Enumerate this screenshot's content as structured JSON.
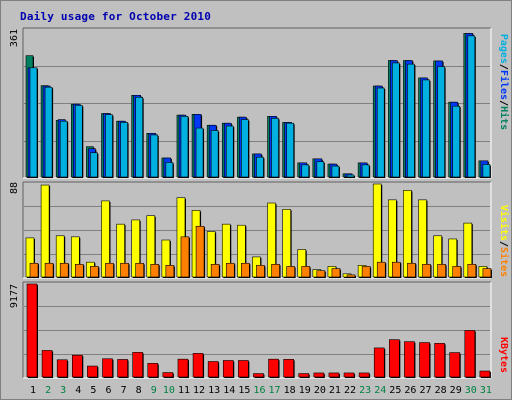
{
  "title": "Daily usage for October 2010",
  "colors": {
    "pages": "#00b0e0",
    "files": "#0038f8",
    "hits": "#008060",
    "visits": "#ffff00",
    "sites": "#ff8000",
    "kbytes": "#ff0000",
    "weekday_label": "#000000",
    "weekend_label": "#008040",
    "frame_bg": "#c0c0c0",
    "title": "#0000b0"
  },
  "chart_data": [
    {
      "type": "bar",
      "panel": "pages-files-hits",
      "ymax_label": "361",
      "ylim": [
        0,
        361
      ],
      "legend": [
        {
          "label": "Pages",
          "color_key": "pages"
        },
        {
          "label": "Files",
          "color_key": "files"
        },
        {
          "label": "Hits",
          "color_key": "hits"
        }
      ],
      "categories": [
        "1",
        "2",
        "3",
        "4",
        "5",
        "6",
        "7",
        "8",
        "9",
        "10",
        "11",
        "12",
        "13",
        "14",
        "15",
        "16",
        "17",
        "18",
        "19",
        "20",
        "21",
        "22",
        "23",
        "24",
        "25",
        "26",
        "27",
        "28",
        "29",
        "30",
        "31"
      ],
      "weekend_days": [
        "2",
        "3",
        "9",
        "10",
        "16",
        "17",
        "23",
        "24",
        "30",
        "31"
      ],
      "series": [
        {
          "name": "Hits",
          "color_key": "hits",
          "values": [
            300,
            226,
            140,
            180,
            75,
            157,
            138,
            202,
            108,
            47,
            153,
            155,
            128,
            133,
            148,
            57,
            150,
            135,
            35,
            45,
            32,
            8,
            35,
            225,
            288,
            288,
            245,
            287,
            185,
            355,
            40
          ]
        },
        {
          "name": "Files",
          "color_key": "files",
          "values": [
            270,
            225,
            142,
            180,
            70,
            157,
            138,
            202,
            108,
            47,
            153,
            155,
            128,
            133,
            148,
            57,
            150,
            135,
            35,
            45,
            32,
            8,
            35,
            225,
            288,
            288,
            245,
            287,
            185,
            355,
            40
          ]
        },
        {
          "name": "Pages",
          "color_key": "pages",
          "values": [
            270,
            222,
            138,
            177,
            60,
            154,
            135,
            197,
            104,
            36,
            150,
            121,
            115,
            126,
            142,
            49,
            145,
            133,
            30,
            38,
            27,
            5,
            30,
            220,
            282,
            279,
            240,
            273,
            175,
            349,
            31
          ]
        }
      ]
    },
    {
      "type": "bar",
      "panel": "visits-sites",
      "ymax_label": "88",
      "ylim": [
        0,
        88
      ],
      "legend": [
        {
          "label": "Visits",
          "color_key": "visits"
        },
        {
          "label": "Sites",
          "color_key": "sites"
        }
      ],
      "categories": [
        "1",
        "2",
        "3",
        "4",
        "5",
        "6",
        "7",
        "8",
        "9",
        "10",
        "11",
        "12",
        "13",
        "14",
        "15",
        "16",
        "17",
        "18",
        "19",
        "20",
        "21",
        "22",
        "23",
        "24",
        "25",
        "26",
        "27",
        "28",
        "29",
        "30",
        "31"
      ],
      "series": [
        {
          "name": "Visits",
          "color_key": "visits",
          "values": [
            37,
            87,
            39,
            38,
            14,
            72,
            50,
            54,
            58,
            35,
            75,
            63,
            43,
            50,
            49,
            19,
            70,
            64,
            26,
            7,
            10,
            3,
            11,
            88,
            73,
            82,
            73,
            39,
            36,
            51,
            10
          ]
        },
        {
          "name": "Sites",
          "color_key": "sites",
          "values": [
            13,
            13,
            13,
            12,
            10,
            13,
            13,
            13,
            12,
            11,
            38,
            48,
            12,
            13,
            13,
            11,
            12,
            10,
            10,
            6,
            8,
            2,
            10,
            14,
            14,
            13,
            12,
            12,
            10,
            12,
            8
          ]
        }
      ]
    },
    {
      "type": "bar",
      "panel": "kbytes",
      "ymax_label": "9177",
      "ylim": [
        0,
        9177
      ],
      "legend": [
        {
          "label": "KBytes",
          "color_key": "kbytes"
        }
      ],
      "categories": [
        "1",
        "2",
        "3",
        "4",
        "5",
        "6",
        "7",
        "8",
        "9",
        "10",
        "11",
        "12",
        "13",
        "14",
        "15",
        "16",
        "17",
        "18",
        "19",
        "20",
        "21",
        "22",
        "23",
        "24",
        "25",
        "26",
        "27",
        "28",
        "29",
        "30",
        "31"
      ],
      "series": [
        {
          "name": "KBytes",
          "color_key": "kbytes",
          "values": [
            9177,
            2620,
            1700,
            2150,
            1080,
            1800,
            1730,
            2430,
            1350,
            440,
            1760,
            2330,
            1530,
            1630,
            1630,
            340,
            1760,
            1740,
            340,
            400,
            400,
            400,
            400,
            2870,
            3690,
            3490,
            3400,
            3320,
            2410,
            4590,
            590
          ]
        }
      ]
    }
  ]
}
